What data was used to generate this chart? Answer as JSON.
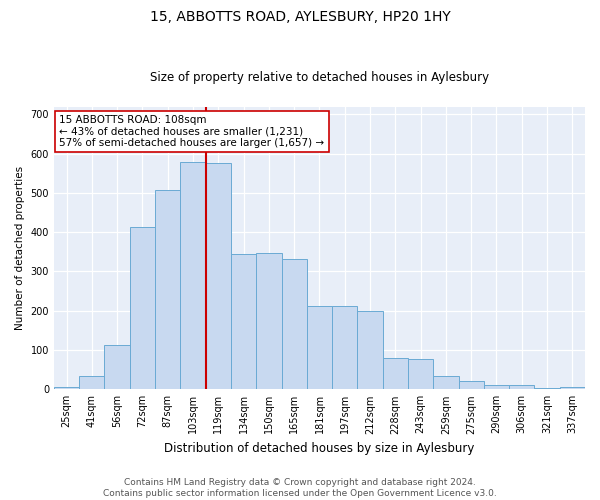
{
  "title1": "15, ABBOTTS ROAD, AYLESBURY, HP20 1HY",
  "title2": "Size of property relative to detached houses in Aylesbury",
  "xlabel": "Distribution of detached houses by size in Aylesbury",
  "ylabel": "Number of detached properties",
  "categories": [
    "25sqm",
    "41sqm",
    "56sqm",
    "72sqm",
    "87sqm",
    "103sqm",
    "119sqm",
    "134sqm",
    "150sqm",
    "165sqm",
    "181sqm",
    "197sqm",
    "212sqm",
    "228sqm",
    "243sqm",
    "259sqm",
    "275sqm",
    "290sqm",
    "306sqm",
    "321sqm",
    "337sqm"
  ],
  "values": [
    7,
    35,
    113,
    413,
    507,
    578,
    576,
    345,
    347,
    333,
    212,
    212,
    200,
    80,
    78,
    35,
    20,
    12,
    12,
    3,
    7
  ],
  "bar_color": "#c8d9f0",
  "bar_edge_color": "#6aaad4",
  "vline_x": 5.5,
  "vline_color": "#cc0000",
  "annotation_text": "15 ABBOTTS ROAD: 108sqm\n← 43% of detached houses are smaller (1,231)\n57% of semi-detached houses are larger (1,657) →",
  "annotation_box_facecolor": "#ffffff",
  "annotation_box_edgecolor": "#cc0000",
  "footer1": "Contains HM Land Registry data © Crown copyright and database right 2024.",
  "footer2": "Contains public sector information licensed under the Open Government Licence v3.0.",
  "ylim": [
    0,
    720
  ],
  "yticks": [
    0,
    100,
    200,
    300,
    400,
    500,
    600,
    700
  ],
  "background_color": "#e8eef8",
  "fig_width": 6.0,
  "fig_height": 5.0,
  "title1_fontsize": 10,
  "title2_fontsize": 8.5,
  "ylabel_fontsize": 7.5,
  "xlabel_fontsize": 8.5,
  "tick_fontsize": 7,
  "annotation_fontsize": 7.5,
  "footer_fontsize": 6.5
}
